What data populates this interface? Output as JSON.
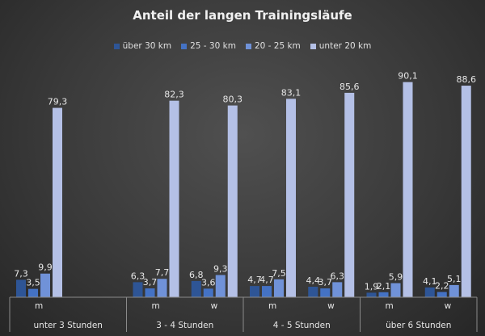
{
  "chart_data": {
    "type": "bar",
    "title": "Anteil der langen Trainingsläufe",
    "categories": [
      {
        "sub": "m",
        "group": "unter 3 Stunden"
      },
      {
        "sub": "",
        "group": "unter 3 Stunden"
      },
      {
        "sub": "m",
        "group": "3 - 4 Stunden"
      },
      {
        "sub": "w",
        "group": "3 - 4 Stunden"
      },
      {
        "sub": "m",
        "group": "4 - 5 Stunden"
      },
      {
        "sub": "w",
        "group": "4 - 5 Stunden"
      },
      {
        "sub": "m",
        "group": "über 6 Stunden"
      },
      {
        "sub": "w",
        "group": "über 6 Stunden"
      }
    ],
    "groups": [
      "unter 3 Stunden",
      "3 - 4 Stunden",
      "4 - 5 Stunden",
      "über 6 Stunden"
    ],
    "series": [
      {
        "name": "über 30 km",
        "color": "#2e5596",
        "values": [
          7.3,
          null,
          6.3,
          6.8,
          4.7,
          4.4,
          1.9,
          4.1
        ]
      },
      {
        "name": "25 - 30 km",
        "color": "#4472c4",
        "values": [
          3.5,
          null,
          3.7,
          3.6,
          4.7,
          3.7,
          2.1,
          2.2
        ]
      },
      {
        "name": "20 - 25 km",
        "color": "#7092d8",
        "values": [
          9.9,
          null,
          7.7,
          9.3,
          7.5,
          6.3,
          5.9,
          5.1
        ]
      },
      {
        "name": "unter 20 km",
        "color": "#b4c0e6",
        "values": [
          79.3,
          null,
          82.3,
          80.3,
          83.1,
          85.6,
          90.1,
          88.6
        ]
      }
    ],
    "ylim": [
      0,
      92
    ],
    "grid": false,
    "legend_position": "top",
    "decimal_separator": ","
  }
}
